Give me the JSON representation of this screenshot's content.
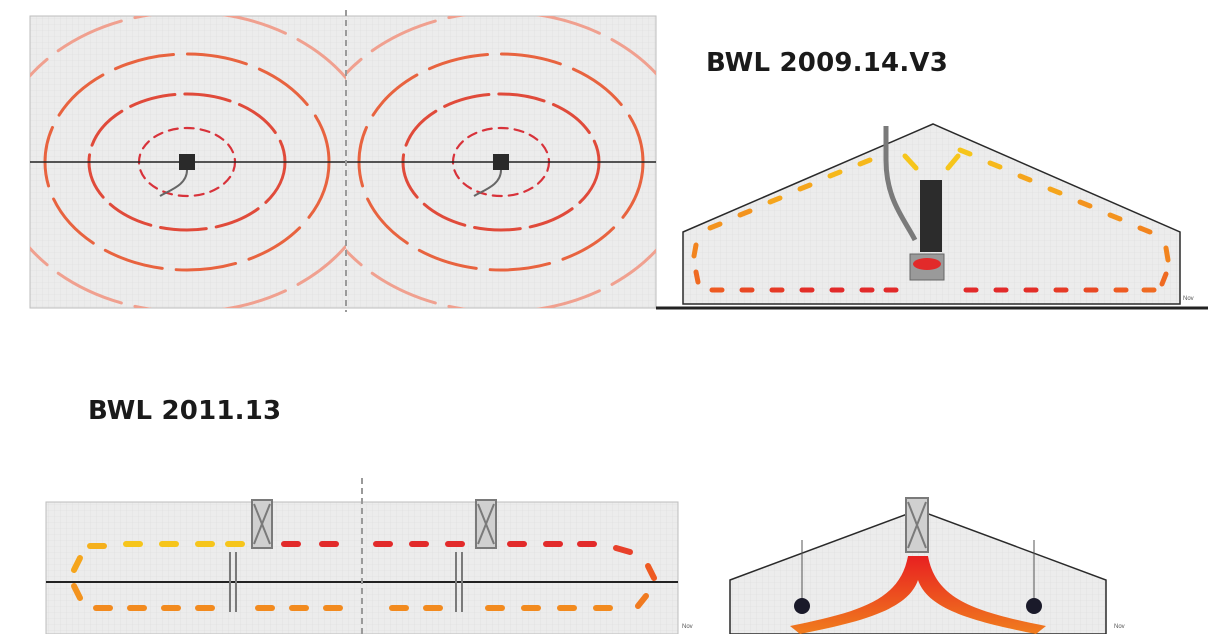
{
  "figure": {
    "top_title": "BWL 2009.14.V3",
    "bottom_title": "BWL 2011.13",
    "scale_label": "Nov"
  },
  "colors": {
    "ring": "#e8553f",
    "ring_faint": "#f0a08f",
    "arrow_red": "#e22a2a",
    "arrow_orange": "#f28a1e",
    "arrow_yellow": "#f6c51b",
    "panel_bg": "#ececec",
    "line": "#222222"
  },
  "icons": [
    "heater-unit-icon",
    "duct-icon",
    "airflow-arrow-icon"
  ]
}
